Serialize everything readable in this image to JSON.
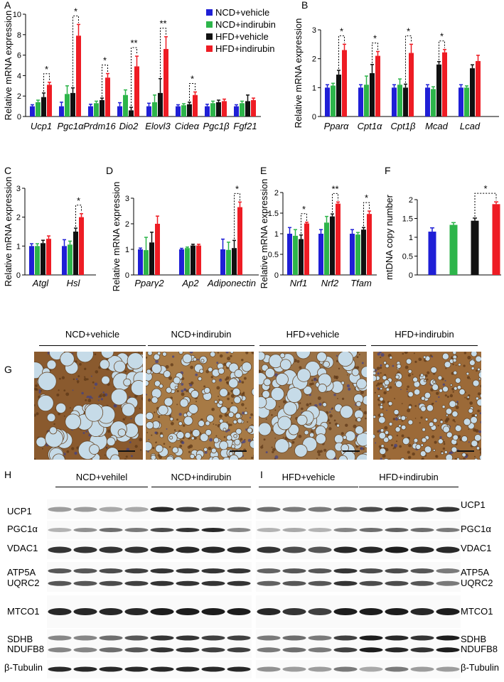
{
  "legend": [
    {
      "label": "NCD+vehicle",
      "color": "#1f1fd6"
    },
    {
      "label": "NCD+indirubin",
      "color": "#2db54a"
    },
    {
      "label": "HFD+vehicle",
      "color": "#111111"
    },
    {
      "label": "HFD+indirubin",
      "color": "#ee1c24"
    }
  ],
  "chart_data": [
    {
      "id": "A",
      "type": "bar",
      "ylabel": "Relative mRNA expression",
      "ylim": [
        0,
        10
      ],
      "yticks": [
        0,
        2,
        4,
        6,
        8,
        10
      ],
      "categories": [
        "Ucp1",
        "Pgc1α",
        "Prdm16",
        "Dio2",
        "Elovl3",
        "Cideα",
        "Pgc1β",
        "Fgf21"
      ],
      "series": [
        {
          "name": "NCD+vehicle",
          "values": [
            1.0,
            1.0,
            1.0,
            1.0,
            1.0,
            1.0,
            1.0,
            1.0
          ],
          "errors": [
            0.15,
            0.4,
            0.2,
            0.35,
            0.3,
            0.15,
            0.2,
            0.15
          ]
        },
        {
          "name": "NCD+indirubin",
          "values": [
            1.4,
            2.2,
            1.3,
            2.1,
            1.4,
            1.1,
            1.3,
            1.3
          ],
          "errors": [
            0.2,
            0.8,
            0.2,
            0.5,
            0.7,
            0.15,
            0.2,
            0.2
          ]
        },
        {
          "name": "HFD+vehicle",
          "values": [
            1.9,
            2.3,
            1.6,
            0.6,
            2.3,
            1.2,
            1.4,
            1.5
          ],
          "errors": [
            0.4,
            0.5,
            0.2,
            0.3,
            1.4,
            0.2,
            0.2,
            0.6
          ]
        },
        {
          "name": "HFD+indirubin",
          "values": [
            3.1,
            7.9,
            3.8,
            4.9,
            6.6,
            2.1,
            1.5,
            1.6
          ],
          "errors": [
            0.25,
            1.1,
            0.4,
            1.0,
            1.2,
            0.3,
            0.2,
            0.2
          ]
        }
      ],
      "significance": [
        {
          "category": "Ucp1",
          "label": "*"
        },
        {
          "category": "Pgc1α",
          "label": "*"
        },
        {
          "category": "Prdm16",
          "label": "*"
        },
        {
          "category": "Dio2",
          "label": "**"
        },
        {
          "category": "Elovl3",
          "label": "**"
        },
        {
          "category": "Cideα",
          "label": "*"
        }
      ]
    },
    {
      "id": "B",
      "type": "bar",
      "ylabel": "Relative mRNA expression",
      "ylim": [
        0,
        3
      ],
      "yticks": [
        0,
        1,
        2,
        3
      ],
      "categories": [
        "Pparα",
        "Cpt1α",
        "Cpt1β",
        "Mcad",
        "Lcad"
      ],
      "series": [
        {
          "name": "NCD+vehicle",
          "values": [
            1.0,
            1.0,
            1.0,
            1.0,
            1.0
          ],
          "errors": [
            0.1,
            0.1,
            0.1,
            0.1,
            0.1
          ]
        },
        {
          "name": "NCD+indirubin",
          "values": [
            1.07,
            1.1,
            1.1,
            0.95,
            1.0
          ],
          "errors": [
            0.08,
            0.3,
            0.2,
            0.08,
            0.06
          ]
        },
        {
          "name": "HFD+vehicle",
          "values": [
            1.45,
            1.5,
            1.0,
            1.8,
            1.67
          ],
          "errors": [
            0.15,
            0.3,
            0.12,
            0.1,
            0.12
          ]
        },
        {
          "name": "HFD+indirubin",
          "values": [
            2.3,
            2.1,
            2.2,
            2.22,
            1.92
          ],
          "errors": [
            0.2,
            0.15,
            0.3,
            0.1,
            0.2
          ]
        }
      ],
      "significance": [
        {
          "category": "Pparα",
          "label": "*"
        },
        {
          "category": "Cpt1α",
          "label": "*"
        },
        {
          "category": "Cpt1β",
          "label": "*"
        },
        {
          "category": "Mcad",
          "label": "*"
        }
      ]
    },
    {
      "id": "C",
      "type": "bar",
      "ylabel": "Relative mRNA expression",
      "ylim": [
        0,
        3
      ],
      "yticks": [
        0,
        1,
        2,
        3
      ],
      "categories": [
        "Atgl",
        "Hsl"
      ],
      "series": [
        {
          "name": "NCD+vehicle",
          "values": [
            1.0,
            1.0
          ],
          "errors": [
            0.08,
            0.22
          ]
        },
        {
          "name": "NCD+indirubin",
          "values": [
            1.0,
            1.05
          ],
          "errors": [
            0.08,
            0.12
          ]
        },
        {
          "name": "HFD+vehicle",
          "values": [
            1.1,
            1.5
          ],
          "errors": [
            0.1,
            0.12
          ]
        },
        {
          "name": "HFD+indirubin",
          "values": [
            1.25,
            2.0
          ],
          "errors": [
            0.1,
            0.12
          ]
        }
      ],
      "significance": [
        {
          "category": "Hsl",
          "label": "*"
        }
      ]
    },
    {
      "id": "D",
      "type": "bar",
      "ylabel": "Relative mRNA expression",
      "ylim": [
        0,
        3
      ],
      "yticks": [
        0,
        1,
        2,
        3
      ],
      "categories": [
        "Pparγ2",
        "Ap2",
        "Adiponectin"
      ],
      "series": [
        {
          "name": "NCD+vehicle",
          "values": [
            1.0,
            1.0,
            1.0
          ],
          "errors": [
            0.05,
            0.04,
            0.4
          ]
        },
        {
          "name": "NCD+indirubin",
          "values": [
            0.97,
            1.05,
            0.98
          ],
          "errors": [
            0.5,
            0.04,
            0.3
          ]
        },
        {
          "name": "HFD+vehicle",
          "values": [
            1.27,
            1.15,
            1.05
          ],
          "errors": [
            0.4,
            0.05,
            0.3
          ]
        },
        {
          "name": "HFD+indirubin",
          "values": [
            2.0,
            1.15,
            2.65
          ],
          "errors": [
            0.3,
            0.05,
            0.2
          ]
        }
      ],
      "significance": [
        {
          "category": "Adiponectin",
          "label": "*"
        }
      ]
    },
    {
      "id": "E",
      "type": "bar",
      "ylabel": "Relative mRNA expression",
      "ylim": [
        0,
        2
      ],
      "yticks": [
        0,
        0.5,
        1,
        1.5,
        2
      ],
      "categories": [
        "Nrf1",
        "Nrf2",
        "Tfam"
      ],
      "series": [
        {
          "name": "NCD+vehicle",
          "values": [
            1.0,
            1.0,
            1.0
          ],
          "errors": [
            0.15,
            0.1,
            0.1
          ]
        },
        {
          "name": "NCD+indirubin",
          "values": [
            0.95,
            1.27,
            0.98
          ],
          "errors": [
            0.15,
            0.15,
            0.05
          ]
        },
        {
          "name": "HFD+vehicle",
          "values": [
            0.87,
            1.42,
            1.1
          ],
          "errors": [
            0.1,
            0.06,
            0.05
          ]
        },
        {
          "name": "HFD+indirubin",
          "values": [
            1.25,
            1.73,
            1.48
          ],
          "errors": [
            0.03,
            0.04,
            0.07
          ]
        }
      ],
      "significance": [
        {
          "category": "Nrf1",
          "label": "*"
        },
        {
          "category": "Nrf2",
          "label": "**"
        },
        {
          "category": "Tfam",
          "label": "*"
        }
      ]
    },
    {
      "id": "F",
      "type": "bar",
      "ylabel": "mtDNA copy number",
      "ylim": [
        0,
        2
      ],
      "yticks": [
        0,
        0.5,
        1,
        1.5,
        2
      ],
      "categories": [
        "NCD+vehicle",
        "NCD+indirubin",
        "HFD+vehicle",
        "HFD+indirubin"
      ],
      "values": [
        1.15,
        1.33,
        1.44,
        1.88
      ],
      "errors": [
        0.1,
        0.06,
        0.07,
        0.06
      ],
      "significance": [
        {
          "between": [
            "HFD+vehicle",
            "HFD+indirubin"
          ],
          "label": "*"
        }
      ]
    }
  ],
  "panelG": {
    "letter": "G",
    "titles": [
      "NCD+vehicle",
      "NCD+indirubin",
      "HFD+vehicle",
      "HFD+indirubin"
    ]
  },
  "panelH": {
    "letter": "H",
    "groups": [
      "NCD+vehilel",
      "NCD+indirubin"
    ],
    "proteins": [
      "UCP1",
      "PGC1α",
      "VDAC1",
      "ATP5A",
      "UQRC2",
      "MTCO1",
      "SDHB",
      "NDUFB8",
      "β-Tubulin"
    ]
  },
  "panelI": {
    "letter": "I",
    "groups": [
      "HFD+vehicle",
      "HFD+indirubin"
    ],
    "proteins": [
      "UCP1",
      "PGC1α",
      "VDAC1",
      "ATP5A",
      "UQRC2",
      "MTCO1",
      "SDHB",
      "NDUFB8",
      "β-Tubulin"
    ]
  }
}
